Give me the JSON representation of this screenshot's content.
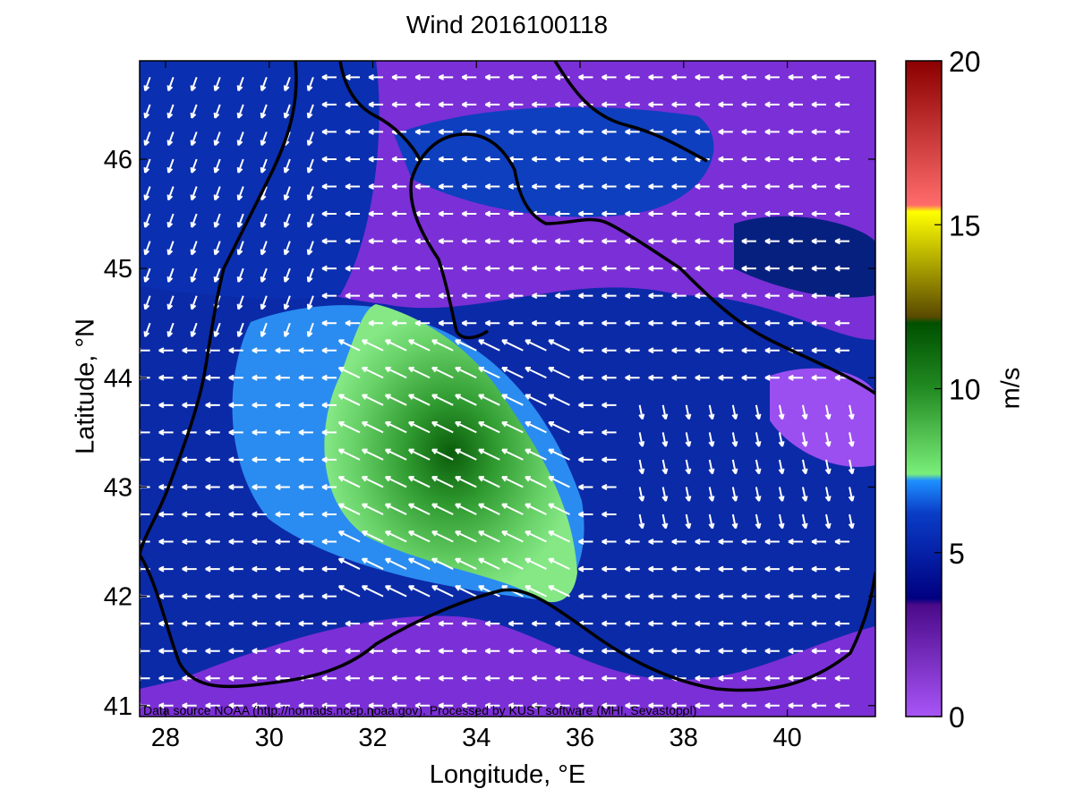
{
  "title": "Wind 2016100118",
  "axes": {
    "xlabel": "Longitude, °E",
    "ylabel": "Latitude, °N",
    "xticks": [
      "28",
      "30",
      "32",
      "34",
      "36",
      "38",
      "40"
    ],
    "yticks": [
      "41",
      "42",
      "43",
      "44",
      "45",
      "46"
    ]
  },
  "colorbar": {
    "label": "m/s",
    "ticks": [
      "0",
      "5",
      "10",
      "15",
      "20"
    ],
    "colors": {
      "purple": "#a855f7",
      "navy": "#000080",
      "blue": "#1e90ff",
      "green": "#228b22",
      "olive": "#6b5f00",
      "yellow": "#ffff00",
      "red": "#8b0000"
    }
  },
  "source_note": "Data source NOAA (http://nomads.ncep.noaa.gov). Processed by KUST software (MHI, Sevastopol)",
  "chart_data": {
    "type": "heatmap",
    "title": "Wind 2016100118",
    "xlabel": "Longitude, °E",
    "ylabel": "Latitude, °N",
    "xlim": [
      27.5,
      41.7
    ],
    "ylim": [
      40.9,
      46.9
    ],
    "colorbar_label": "m/s",
    "colorbar_range": [
      0,
      20
    ],
    "wind_field": {
      "dominant_direction": "westward",
      "max_speed_region": {
        "lon_range": [
          31.5,
          36
        ],
        "lat_range": [
          42,
          44.3
        ],
        "speed_ms": [
          8,
          11
        ]
      },
      "background_speed_ms": [
        0,
        4
      ]
    }
  }
}
